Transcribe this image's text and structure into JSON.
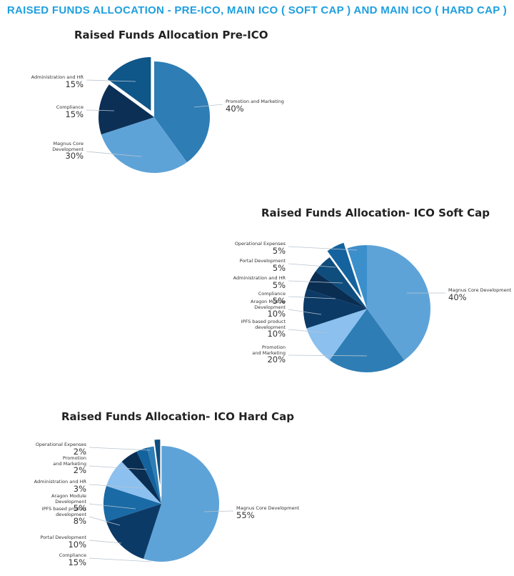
{
  "header": {
    "title": "RAISED FUNDS ALLOCATION - PRE-ICO, MAIN ICO ( SOFT CAP ) AND MAIN ICO ( HARD CAP )"
  },
  "chart_data": [
    {
      "type": "pie",
      "title": "Raised Funds Allocation Pre-ICO",
      "categories": [
        "Promotion and Marketing",
        "Magnus Core Development",
        "Compliance",
        "Administration and HR"
      ],
      "values": [
        40,
        30,
        15,
        15
      ],
      "value_labels": [
        "40%",
        "30%",
        "15%",
        "15%"
      ],
      "exploded": [
        "Administration and HR"
      ],
      "colors": [
        "#2e7db5",
        "#5ea3d8",
        "#0c2f55",
        "#0f5689"
      ]
    },
    {
      "type": "pie",
      "title": "Raised Funds Allocation- ICO Soft Cap",
      "categories": [
        "Magnus Core Development",
        "Promotion and Marketing",
        "IPFS based product development",
        "Aragon Module Development",
        "Compliance",
        "Administration and HR",
        "Portal Development",
        "Operational Expenses"
      ],
      "values": [
        40,
        20,
        10,
        10,
        5,
        5,
        5,
        5
      ],
      "value_labels": [
        "40%",
        "20%",
        "10%",
        "10%",
        "5%",
        "5%",
        "5%",
        "5%"
      ],
      "exploded": [
        "Portal Development"
      ],
      "colors": [
        "#5ea3d8",
        "#2e7db5",
        "#8bc0ef",
        "#0c3a66",
        "#0a2d52",
        "#0f4d7d",
        "#14639e",
        "#3b8fcb"
      ]
    },
    {
      "type": "pie",
      "title": "Raised Funds Allocation- ICO Hard Cap",
      "categories": [
        "Magnus Core Development",
        "Compliance",
        "Portal Development",
        "IPFS based product development",
        "Aragon Module Development",
        "Administration and HR",
        "Promotion and Marketing",
        "Operational Expenses"
      ],
      "values": [
        55,
        15,
        10,
        8,
        5,
        3,
        2,
        2
      ],
      "value_labels": [
        "55%",
        "15%",
        "10%",
        "8%",
        "5%",
        "3%",
        "2%",
        "2%"
      ],
      "exploded": [
        "Operational Expenses"
      ],
      "colors": [
        "#5ea3d8",
        "#0c3a66",
        "#1a6aa6",
        "#8bc0ef",
        "#0a2d52",
        "#14639e",
        "#2e7db5",
        "#0f4d7d"
      ]
    }
  ]
}
